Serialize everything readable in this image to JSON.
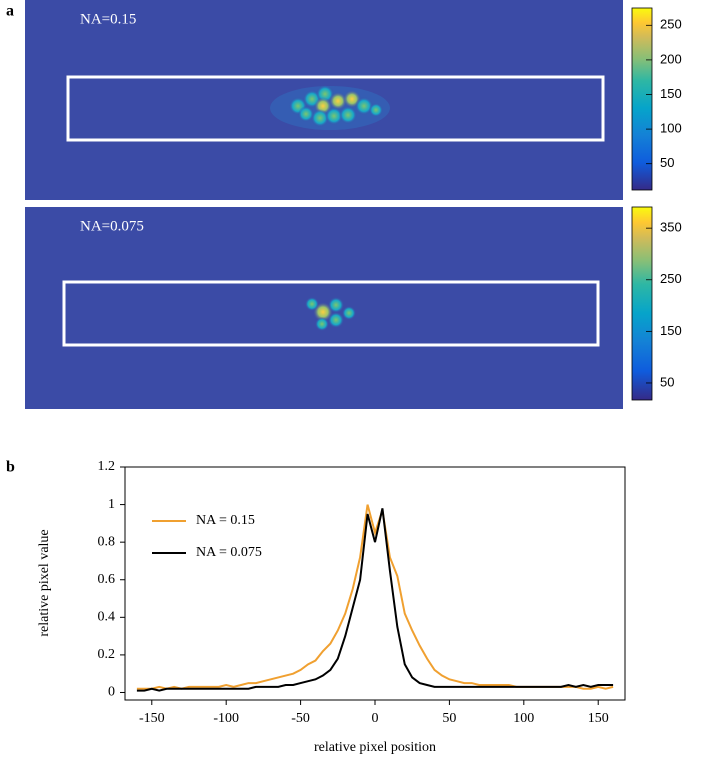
{
  "panel_labels": [
    "a",
    "b"
  ],
  "chart_data": [
    {
      "type": "heatmap",
      "annotation": "NA=0.15",
      "clim": [
        12,
        275
      ],
      "colorbar_ticks": [
        50,
        100,
        150,
        200,
        250
      ]
    },
    {
      "type": "heatmap",
      "annotation": "NA=0.075",
      "clim": [
        17,
        391
      ],
      "colorbar_ticks": [
        50,
        150,
        250,
        350
      ]
    },
    {
      "type": "line",
      "xlabel": "relative pixel position",
      "ylabel": "relative pixel value",
      "xlim": [
        -168,
        168
      ],
      "ylim": [
        -0.04,
        1.2
      ],
      "xticks": [
        -150,
        -100,
        -50,
        0,
        50,
        100,
        150
      ],
      "yticks": [
        0,
        0.2,
        0.4,
        0.6,
        0.8,
        1,
        1.2
      ],
      "x": [
        -160,
        -155,
        -150,
        -145,
        -140,
        -135,
        -130,
        -125,
        -120,
        -115,
        -110,
        -105,
        -100,
        -95,
        -90,
        -85,
        -80,
        -75,
        -70,
        -65,
        -60,
        -55,
        -50,
        -45,
        -40,
        -35,
        -30,
        -25,
        -20,
        -15,
        -10,
        -5,
        0,
        5,
        10,
        15,
        20,
        25,
        30,
        35,
        40,
        45,
        50,
        55,
        60,
        65,
        70,
        75,
        80,
        85,
        90,
        95,
        100,
        105,
        110,
        115,
        120,
        125,
        130,
        135,
        140,
        145,
        150,
        155,
        160
      ],
      "series": [
        {
          "name": "NA = 0.15",
          "color": "#f0a030",
          "values": [
            0.02,
            0.02,
            0.02,
            0.03,
            0.02,
            0.03,
            0.02,
            0.03,
            0.03,
            0.03,
            0.03,
            0.03,
            0.04,
            0.03,
            0.04,
            0.05,
            0.05,
            0.06,
            0.07,
            0.08,
            0.09,
            0.1,
            0.12,
            0.15,
            0.17,
            0.22,
            0.26,
            0.33,
            0.42,
            0.55,
            0.72,
            1.0,
            0.85,
            0.97,
            0.72,
            0.62,
            0.42,
            0.33,
            0.25,
            0.18,
            0.12,
            0.09,
            0.07,
            0.06,
            0.05,
            0.05,
            0.04,
            0.04,
            0.04,
            0.04,
            0.04,
            0.03,
            0.03,
            0.03,
            0.03,
            0.03,
            0.03,
            0.03,
            0.03,
            0.03,
            0.02,
            0.02,
            0.03,
            0.02,
            0.03
          ]
        },
        {
          "name": "NA = 0.075",
          "color": "#000000",
          "values": [
            0.01,
            0.01,
            0.02,
            0.01,
            0.02,
            0.02,
            0.02,
            0.02,
            0.02,
            0.02,
            0.02,
            0.02,
            0.02,
            0.02,
            0.02,
            0.02,
            0.03,
            0.03,
            0.03,
            0.03,
            0.04,
            0.04,
            0.05,
            0.06,
            0.07,
            0.09,
            0.12,
            0.18,
            0.3,
            0.45,
            0.6,
            0.95,
            0.8,
            0.98,
            0.65,
            0.35,
            0.15,
            0.08,
            0.05,
            0.04,
            0.03,
            0.03,
            0.03,
            0.03,
            0.03,
            0.03,
            0.03,
            0.03,
            0.03,
            0.03,
            0.03,
            0.03,
            0.03,
            0.03,
            0.03,
            0.03,
            0.03,
            0.03,
            0.04,
            0.03,
            0.04,
            0.03,
            0.04,
            0.04,
            0.04
          ]
        }
      ]
    }
  ]
}
